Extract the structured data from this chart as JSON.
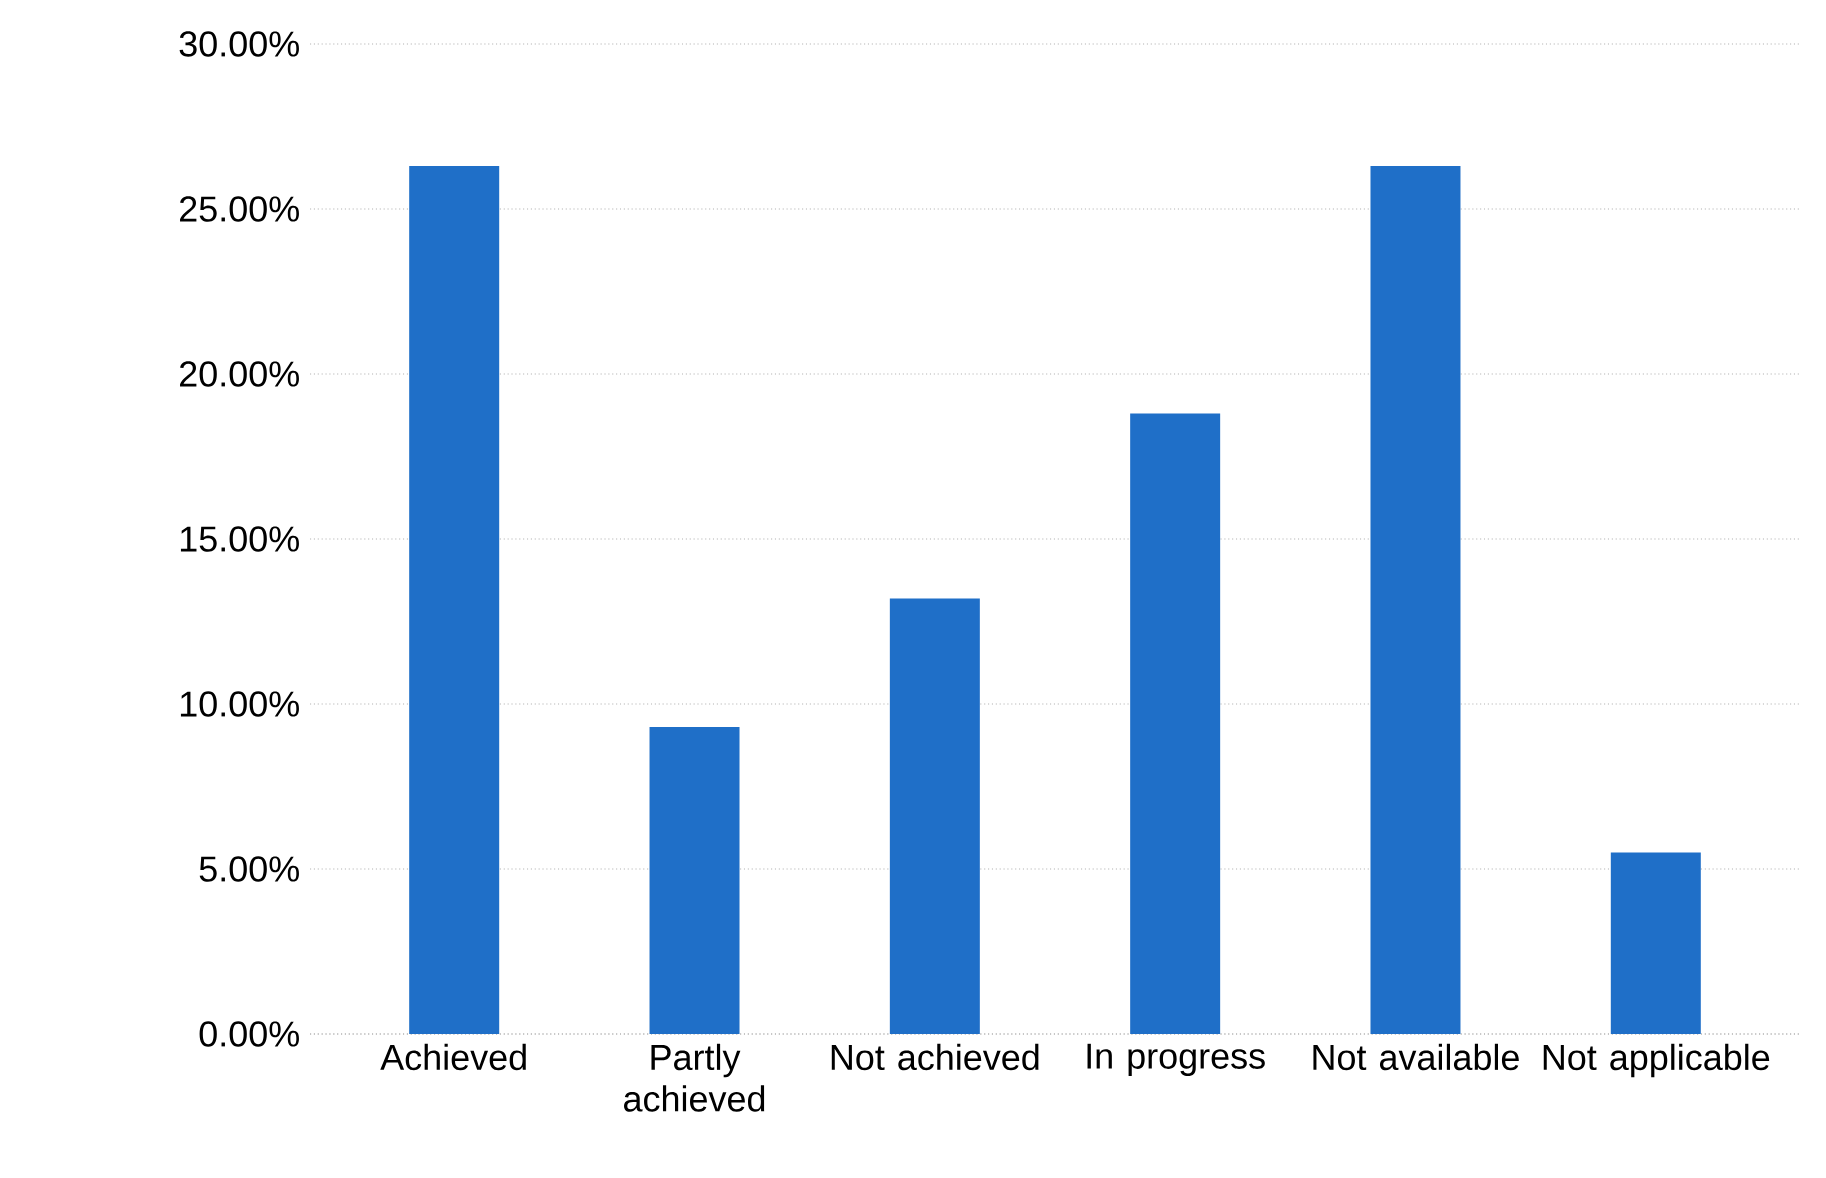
{
  "chart_data": {
    "type": "bar",
    "categories": [
      "Achieved",
      "Partly achieved",
      "Not achieved",
      "In progress",
      "Not available",
      "Not applicable"
    ],
    "values": [
      26.3,
      9.3,
      13.2,
      18.8,
      26.3,
      5.5
    ],
    "color": "#1f6fc8",
    "ylim": [
      0,
      30
    ],
    "yticks": [
      {
        "value": 0,
        "label": "0.00%"
      },
      {
        "value": 5,
        "label": "5.00%"
      },
      {
        "value": 10,
        "label": "10.00%"
      },
      {
        "value": 15,
        "label": "15.00%"
      },
      {
        "value": 20,
        "label": "20.00%"
      },
      {
        "value": 25,
        "label": "25.00%"
      },
      {
        "value": 30,
        "label": "30.00%"
      }
    ],
    "grid": "y"
  }
}
